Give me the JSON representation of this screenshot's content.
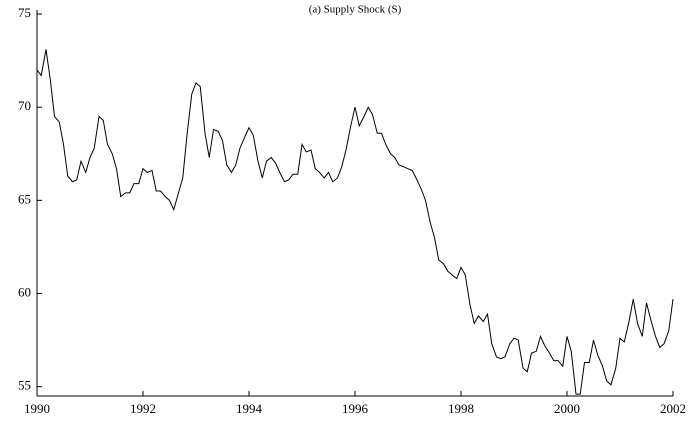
{
  "chart_data": {
    "type": "line",
    "title": "(a) Supply Shock (S)",
    "x": [
      1990,
      1990.08,
      1990.17,
      1990.25,
      1990.33,
      1990.42,
      1990.5,
      1990.58,
      1990.67,
      1990.75,
      1990.83,
      1990.92,
      1991,
      1991.08,
      1991.17,
      1991.25,
      1991.33,
      1991.42,
      1991.5,
      1991.58,
      1991.67,
      1991.75,
      1991.83,
      1991.92,
      1992,
      1992.08,
      1992.17,
      1992.25,
      1992.33,
      1992.42,
      1992.5,
      1992.58,
      1992.67,
      1992.75,
      1992.83,
      1992.92,
      1993,
      1993.08,
      1993.17,
      1993.25,
      1993.33,
      1993.42,
      1993.5,
      1993.58,
      1993.67,
      1993.75,
      1993.83,
      1993.92,
      1994,
      1994.08,
      1994.17,
      1994.25,
      1994.33,
      1994.42,
      1994.5,
      1994.58,
      1994.67,
      1994.75,
      1994.83,
      1994.92,
      1995,
      1995.08,
      1995.17,
      1995.25,
      1995.33,
      1995.42,
      1995.5,
      1995.58,
      1995.67,
      1995.75,
      1995.83,
      1995.92,
      1996,
      1996.08,
      1996.17,
      1996.25,
      1996.33,
      1996.42,
      1996.5,
      1996.58,
      1996.67,
      1996.75,
      1996.83,
      1996.92,
      1997,
      1997.08,
      1997.17,
      1997.25,
      1997.33,
      1997.42,
      1997.5,
      1997.58,
      1997.67,
      1997.75,
      1997.83,
      1997.92,
      1998,
      1998.08,
      1998.17,
      1998.25,
      1998.33,
      1998.42,
      1998.5,
      1998.58,
      1998.67,
      1998.75,
      1998.83,
      1998.92,
      1999,
      1999.08,
      1999.17,
      1999.25,
      1999.33,
      1999.42,
      1999.5,
      1999.58,
      1999.67,
      1999.75,
      1999.83,
      1999.92,
      2000,
      2000.08,
      2000.17,
      2000.25,
      2000.33,
      2000.42,
      2000.5,
      2000.58,
      2000.67,
      2000.75,
      2000.83,
      2000.92,
      2001,
      2001.08,
      2001.17,
      2001.25,
      2001.33,
      2001.42,
      2001.5,
      2001.58,
      2001.67,
      2001.75,
      2001.83,
      2001.92,
      2002
    ],
    "values": [
      72.0,
      71.7,
      73.1,
      71.5,
      69.5,
      69.2,
      68.0,
      66.3,
      66.0,
      66.1,
      67.1,
      66.5,
      67.3,
      67.8,
      69.5,
      69.3,
      68.0,
      67.5,
      66.7,
      65.2,
      65.4,
      65.4,
      65.9,
      65.9,
      66.7,
      66.5,
      66.6,
      65.5,
      65.5,
      65.2,
      65.0,
      64.5,
      65.4,
      66.2,
      68.5,
      70.7,
      71.3,
      71.1,
      68.6,
      67.3,
      68.8,
      68.7,
      68.2,
      66.9,
      66.5,
      66.9,
      67.8,
      68.4,
      68.9,
      68.5,
      67.1,
      66.2,
      67.1,
      67.3,
      67.0,
      66.5,
      66.0,
      66.1,
      66.4,
      66.4,
      68.0,
      67.6,
      67.7,
      66.7,
      66.5,
      66.2,
      66.5,
      66.0,
      66.2,
      66.8,
      67.7,
      69.0,
      70.0,
      69.0,
      69.5,
      70.0,
      69.6,
      68.6,
      68.6,
      68.0,
      67.5,
      67.3,
      66.9,
      66.8,
      66.7,
      66.6,
      66.1,
      65.6,
      65.0,
      63.8,
      63.0,
      61.8,
      61.6,
      61.2,
      61.0,
      60.8,
      61.4,
      61.0,
      59.4,
      58.4,
      58.8,
      58.5,
      58.9,
      57.3,
      56.6,
      56.5,
      56.6,
      57.3,
      57.6,
      57.5,
      56.0,
      55.8,
      56.8,
      56.9,
      57.7,
      57.2,
      56.8,
      56.4,
      56.4,
      56.1,
      57.7,
      56.9,
      54.6,
      54.6,
      56.3,
      56.3,
      57.5,
      56.7,
      56.1,
      55.3,
      55.1,
      56.0,
      57.6,
      57.4,
      58.5,
      59.7,
      58.4,
      57.7,
      59.5,
      58.6,
      57.7,
      57.1,
      57.3,
      58.0,
      59.7
    ],
    "color": "#000000",
    "xlim": [
      1990,
      2002
    ],
    "xticks": [
      1990,
      1992,
      1994,
      1996,
      1998,
      2000,
      2002
    ],
    "ylim": [
      54.5,
      75
    ],
    "yticks": [
      55,
      60,
      65,
      70,
      75
    ]
  }
}
